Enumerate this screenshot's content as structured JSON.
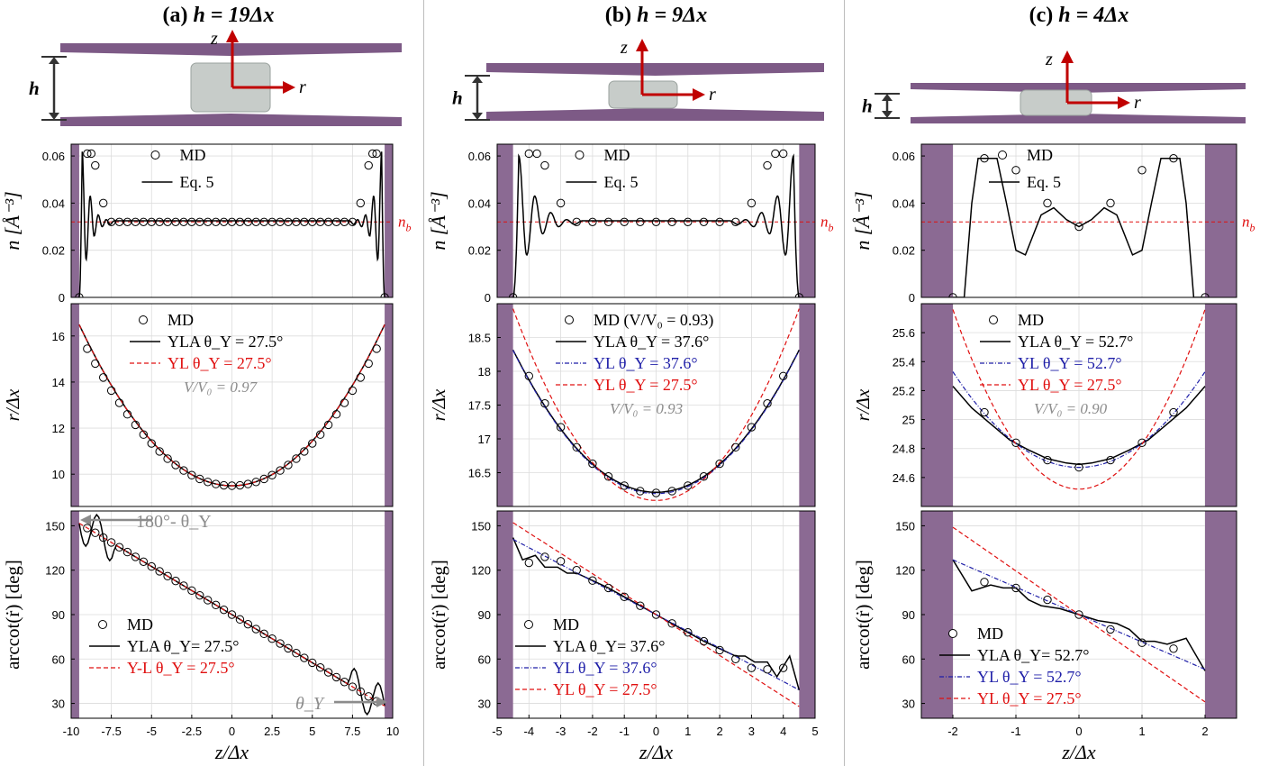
{
  "colors": {
    "wall": "#8b6a93",
    "slab": "#7d5a86",
    "droplet": "#c7ccc9",
    "arrow": "#c00000",
    "md_marker": "#000000",
    "eq_line": "#000000",
    "yla_line": "#000000",
    "yl_fit_line": "#1f1fa8",
    "yl_ref_line": "#e01010",
    "nb_line": "#e01010",
    "annotation_gray": "#8c8c8c"
  },
  "panels": [
    {
      "title_prefix": "(a)",
      "title_eq": "h = 19Δx",
      "schematic": {
        "h_label": "h",
        "z_label": "z",
        "r_label": "r"
      }
    },
    {
      "title_prefix": "(b)",
      "title_eq": "h = 9Δx",
      "schematic": {
        "h_label": "h",
        "z_label": "z",
        "r_label": "r"
      }
    },
    {
      "title_prefix": "(c)",
      "title_eq": "h = 4Δx",
      "schematic": {
        "h_label": "h",
        "z_label": "z",
        "r_label": "r"
      }
    }
  ],
  "chart_data": [
    {
      "id": "a-density",
      "type": "line",
      "ylabel": "n [Å⁻³]",
      "xlim": [
        -10,
        10
      ],
      "ylim": [
        0,
        0.065
      ],
      "yticks": [
        0,
        0.02,
        0.04,
        0.06
      ],
      "ytick_labels": [
        "0",
        "0.02",
        "0.04",
        "0.06"
      ],
      "wall": 9.5,
      "grid": true,
      "legend": "top-center",
      "nb": {
        "value": 0.032,
        "label": "n_b"
      },
      "series": [
        {
          "name": "MD",
          "style": "marker",
          "x": [
            -9.5,
            -9,
            -8.75,
            -8.5,
            -8,
            -7.5,
            -7,
            -6.5,
            -6,
            -5.5,
            -5,
            -4.5,
            -4,
            -3.5,
            -3,
            -2.5,
            -2,
            -1.5,
            -1,
            -0.5,
            0,
            0.5,
            1,
            1.5,
            2,
            2.5,
            3,
            3.5,
            4,
            4.5,
            5,
            5.5,
            6,
            6.5,
            7,
            7.5,
            8,
            8.5,
            8.75,
            9,
            9.5
          ],
          "y": [
            0,
            0.061,
            0.061,
            0.056,
            0.04,
            0.032,
            0.032,
            0.032,
            0.032,
            0.032,
            0.032,
            0.032,
            0.032,
            0.032,
            0.032,
            0.032,
            0.032,
            0.032,
            0.032,
            0.032,
            0.032,
            0.032,
            0.032,
            0.032,
            0.032,
            0.032,
            0.032,
            0.032,
            0.032,
            0.032,
            0.032,
            0.032,
            0.032,
            0.032,
            0.032,
            0.032,
            0.04,
            0.056,
            0.061,
            0.061,
            0
          ]
        },
        {
          "name": "Eq. 5",
          "style": "oscillation",
          "peaks": [
            0.062,
            0.043,
            0.035,
            0.033
          ],
          "troughs": [
            0.016,
            0.026,
            0.03,
            0.031
          ],
          "period": 0.5,
          "decay_to": 0.0325
        }
      ]
    },
    {
      "id": "b-density",
      "type": "line",
      "ylabel": "n [Å⁻³]",
      "xlim": [
        -5,
        5
      ],
      "ylim": [
        0,
        0.065
      ],
      "yticks": [
        0,
        0.02,
        0.04,
        0.06
      ],
      "ytick_labels": [
        "0",
        "0.02",
        "0.04",
        "0.06"
      ],
      "wall": 4.5,
      "grid": true,
      "legend": "top-center",
      "nb": {
        "value": 0.032,
        "label": "n_b"
      },
      "series": [
        {
          "name": "MD",
          "style": "marker",
          "x": [
            -4.5,
            -4,
            -3.75,
            -3.5,
            -3,
            -2.5,
            -2,
            -1.5,
            -1,
            -0.5,
            0,
            0.5,
            1,
            1.5,
            2,
            2.5,
            3,
            3.5,
            3.75,
            4,
            4.5
          ],
          "y": [
            0,
            0.061,
            0.061,
            0.056,
            0.04,
            0.032,
            0.032,
            0.032,
            0.032,
            0.032,
            0.032,
            0.032,
            0.032,
            0.032,
            0.032,
            0.032,
            0.04,
            0.056,
            0.061,
            0.061,
            0
          ]
        },
        {
          "name": "Eq. 5",
          "style": "oscillation",
          "peaks": [
            0.06,
            0.043,
            0.036,
            0.033
          ],
          "troughs": [
            0.018,
            0.027,
            0.03,
            0.031
          ],
          "period": 0.5,
          "decay_to": 0.0325
        }
      ]
    },
    {
      "id": "c-density",
      "type": "line",
      "ylabel": "n [Å⁻³]",
      "xlim": [
        -2.5,
        2.5
      ],
      "ylim": [
        0,
        0.065
      ],
      "yticks": [
        0,
        0.02,
        0.04,
        0.06
      ],
      "ytick_labels": [
        "0",
        "0.02",
        "0.04",
        "0.06"
      ],
      "wall": 2.0,
      "grid": true,
      "legend": "top-center",
      "nb": {
        "value": 0.032,
        "label": "n_b"
      },
      "series": [
        {
          "name": "MD",
          "style": "marker",
          "x": [
            -2,
            -1.5,
            -1,
            -0.5,
            0,
            0.5,
            1,
            1.5,
            2
          ],
          "y": [
            0,
            0.059,
            0.054,
            0.04,
            0.03,
            0.04,
            0.054,
            0.059,
            0
          ]
        },
        {
          "name": "Eq. 5",
          "style": "line",
          "x": [
            -2,
            -1.82,
            -1.7,
            -1.6,
            -1.5,
            -1.3,
            -1.15,
            -1.0,
            -0.85,
            -0.6,
            -0.4,
            -0.2,
            0,
            0.2,
            0.4,
            0.6,
            0.85,
            1.0,
            1.15,
            1.3,
            1.5,
            1.6,
            1.7,
            1.82,
            2
          ],
          "y": [
            0,
            0.0,
            0.04,
            0.059,
            0.059,
            0.059,
            0.04,
            0.02,
            0.018,
            0.035,
            0.038,
            0.033,
            0.03,
            0.033,
            0.038,
            0.035,
            0.018,
            0.02,
            0.04,
            0.059,
            0.059,
            0.059,
            0.04,
            0.0,
            0
          ]
        }
      ]
    },
    {
      "id": "a-profile",
      "type": "line",
      "ylabel": "r/Δx",
      "xlim": [
        -10,
        10
      ],
      "ylim": [
        8.6,
        17.4
      ],
      "yticks": [
        10,
        12,
        14,
        16
      ],
      "ytick_labels": [
        "10",
        "12",
        "14",
        "16"
      ],
      "wall": 9.5,
      "grid": true,
      "legend": "top-left",
      "series": [
        {
          "name": "MD",
          "style": "marker",
          "fn": "para",
          "r0": 9.5,
          "a": 0.0734,
          "x_from": -9,
          "x_to": 9,
          "x_step": 0.5
        },
        {
          "name": "YLA",
          "label": "YLA  θ_Y = 27.5°",
          "style": "solid",
          "fn": "para",
          "r0": 9.5,
          "a": 0.0775
        },
        {
          "name": "YL",
          "label": "YL  θ_Y = 27.5°",
          "style": "red-dash",
          "fn": "para",
          "r0": 9.5,
          "a": 0.0775
        }
      ],
      "note": "V/V₀ = 0.97"
    },
    {
      "id": "b-profile",
      "type": "line",
      "ylabel": "r/Δx",
      "xlim": [
        -5,
        5
      ],
      "ylim": [
        16.0,
        19.0
      ],
      "yticks": [
        16.5,
        17,
        17.5,
        18,
        18.5
      ],
      "ytick_labels": [
        "16.5",
        "17",
        "17.5",
        "18",
        "18.5"
      ],
      "wall": 4.5,
      "grid": true,
      "legend": "top-left",
      "series": [
        {
          "name": "MD",
          "style": "marker",
          "fn": "para",
          "r0": 16.2,
          "a": 0.1081,
          "x_from": -4,
          "x_to": 4,
          "x_step": 0.5
        },
        {
          "name": "YLA",
          "label": "YLA  θ_Y = 37.6°",
          "style": "solid",
          "fn": "para",
          "r0": 16.21,
          "a": 0.104
        },
        {
          "name": "YL",
          "label": "YL  θ_Y = 37.6°",
          "style": "blue-dashdot",
          "fn": "para",
          "r0": 16.19,
          "a": 0.1047
        },
        {
          "name": "YL",
          "label": "YL  θ_Y = 27.5°",
          "style": "red-dash",
          "fn": "para",
          "r0": 16.09,
          "a": 0.14
        }
      ],
      "legend_title": "MD  (V/V₀ = 0.93)",
      "note": "V/V₀ = 0.93"
    },
    {
      "id": "c-profile",
      "type": "line",
      "ylabel": "r/Δx",
      "xlim": [
        -2.5,
        2.5
      ],
      "ylim": [
        24.4,
        25.8
      ],
      "yticks": [
        24.6,
        24.8,
        25,
        25.2,
        25.4,
        25.6
      ],
      "ytick_labels": [
        "24.6",
        "24.8",
        "25",
        "25.2",
        "25.4",
        "25.6"
      ],
      "wall": 2.0,
      "grid": true,
      "legend": "top-left",
      "series": [
        {
          "name": "MD",
          "style": "marker",
          "x": [
            -1.5,
            -1,
            -0.5,
            0,
            0.5,
            1,
            1.5
          ],
          "y": [
            25.05,
            24.84,
            24.72,
            24.67,
            24.72,
            24.84,
            25.05
          ]
        },
        {
          "name": "YLA",
          "label": "YLA  θ_Y = 52.7°",
          "style": "solid",
          "x": [
            -2,
            -1.7,
            -1.4,
            -1.1,
            -0.8,
            -0.5,
            -0.2,
            0,
            0.2,
            0.5,
            0.8,
            1.1,
            1.4,
            1.7,
            2
          ],
          "y": [
            25.23,
            25.08,
            24.97,
            24.86,
            24.79,
            24.73,
            24.7,
            24.69,
            24.7,
            24.73,
            24.79,
            24.86,
            24.97,
            25.08,
            25.23
          ]
        },
        {
          "name": "YL",
          "label": "YL  θ_Y = 52.7°",
          "style": "blue-dashdot",
          "fn": "para",
          "r0": 24.67,
          "a": 0.165
        },
        {
          "name": "YL",
          "label": "YL  θ_Y = 27.5°",
          "style": "red-dash",
          "fn": "para",
          "r0": 24.52,
          "a": 0.31
        }
      ],
      "note": "V/V₀ = 0.90"
    },
    {
      "id": "a-angle",
      "type": "line",
      "ylabel": "arccot(ṙ) [deg]",
      "xlabel": "z/Δx",
      "xlim": [
        -10,
        10
      ],
      "ylim": [
        20,
        160
      ],
      "xticks": [
        -10,
        -7.5,
        -5,
        -2.5,
        0,
        2.5,
        5,
        7.5,
        10
      ],
      "xtick_labels": [
        "-10",
        "-7.5",
        "-5",
        "-2.5",
        "0",
        "2.5",
        "5",
        "7.5",
        "10"
      ],
      "yticks": [
        30,
        60,
        90,
        120,
        150
      ],
      "ytick_labels": [
        "30",
        "60",
        "90",
        "120",
        "150"
      ],
      "wall": 9.5,
      "grid": true,
      "legend": "bottom-left",
      "series": [
        {
          "name": "MD",
          "style": "marker",
          "fn": "lin",
          "c": 90,
          "m": -6.5,
          "x_from": -9,
          "x_to": 9,
          "x_step": 0.5
        },
        {
          "name": "YLA",
          "label": "YLA θ_Y= 27.5°",
          "style": "solid",
          "fn": "lin",
          "c": 90,
          "m": -6.5,
          "wiggle": {
            "from": 7.25,
            "amp": 13
          }
        },
        {
          "name": "Y-L",
          "label": "Y-L  θ_Y = 27.5°",
          "style": "red-dash",
          "fn": "lin",
          "c": 90,
          "m": -6.5
        }
      ],
      "annotations": {
        "top": "180°- θ_Y",
        "bottom": "θ_Y"
      }
    },
    {
      "id": "b-angle",
      "type": "line",
      "ylabel": "arccot(ṙ) [deg]",
      "xlabel": "z/Δx",
      "xlim": [
        -5,
        5
      ],
      "ylim": [
        20,
        160
      ],
      "xticks": [
        -5,
        -4,
        -3,
        -2,
        -1,
        0,
        1,
        2,
        3,
        4,
        5
      ],
      "xtick_labels": [
        "-5",
        "-4",
        "-3",
        "-2",
        "-1",
        "0",
        "1",
        "2",
        "3",
        "4",
        "5"
      ],
      "yticks": [
        30,
        60,
        90,
        120,
        150
      ],
      "ytick_labels": [
        "30",
        "60",
        "90",
        "120",
        "150"
      ],
      "wall": 4.5,
      "grid": true,
      "legend": "bottom-left",
      "series": [
        {
          "name": "MD",
          "style": "marker",
          "x": [
            -4,
            -3.5,
            -3,
            -2.5,
            -2,
            -1.5,
            -1,
            -0.5,
            0,
            0.5,
            1,
            1.5,
            2,
            2.5,
            3,
            3.5,
            4
          ],
          "y": [
            125,
            129,
            126,
            120,
            113,
            108,
            102,
            96,
            90,
            84,
            78,
            72,
            66,
            60,
            54,
            53,
            54
          ]
        },
        {
          "name": "YLA",
          "label": "YLA θ_Y= 37.6°",
          "style": "solid",
          "x": [
            -4.5,
            -4.2,
            -3.8,
            -3.5,
            -3.1,
            -2.8,
            -2.5,
            -2,
            -1.5,
            -1,
            -0.5,
            0,
            0.5,
            1,
            1.5,
            2,
            2.5,
            2.8,
            3.1,
            3.5,
            3.8,
            4.2,
            4.5
          ],
          "y": [
            142,
            127,
            130,
            122,
            122,
            118,
            118,
            113,
            108,
            102,
            96,
            90,
            84,
            78,
            72,
            67,
            62,
            62,
            58,
            58,
            48,
            62,
            39
          ]
        },
        {
          "name": "YL",
          "label": "YL  θ_Y = 37.6°",
          "style": "blue-dashdot",
          "fn": "lin",
          "c": 90,
          "m": -11.3
        },
        {
          "name": "YL",
          "label": "YL  θ_Y = 27.5°",
          "style": "red-dash",
          "fn": "lin",
          "c": 90,
          "m": -13.8
        }
      ]
    },
    {
      "id": "c-angle",
      "type": "line",
      "ylabel": "arccot(ṙ) [deg]",
      "xlabel": "z/Δx",
      "xlim": [
        -2.5,
        2.5
      ],
      "ylim": [
        20,
        160
      ],
      "xticks": [
        -2,
        -1,
        0,
        1,
        2
      ],
      "xtick_labels": [
        "-2",
        "-1",
        "0",
        "1",
        "2"
      ],
      "yticks": [
        30,
        60,
        90,
        120,
        150
      ],
      "ytick_labels": [
        "30",
        "60",
        "90",
        "120",
        "150"
      ],
      "wall": 2.0,
      "grid": true,
      "legend": "bottom-left",
      "series": [
        {
          "name": "MD",
          "style": "marker",
          "x": [
            -1.5,
            -1,
            -0.5,
            0,
            0.5,
            1,
            1.5
          ],
          "y": [
            112,
            108,
            100,
            90,
            80,
            71,
            67
          ]
        },
        {
          "name": "YLA",
          "label": "YLA θ_Y= 52.7°",
          "style": "solid",
          "x": [
            -2,
            -1.7,
            -1.4,
            -1.2,
            -1.0,
            -0.8,
            -0.6,
            -0.3,
            0,
            0.3,
            0.6,
            0.8,
            1.0,
            1.2,
            1.4,
            1.7,
            2
          ],
          "y": [
            127,
            106,
            110,
            108,
            108,
            100,
            96,
            94,
            90,
            86,
            84,
            80,
            72,
            72,
            70,
            74,
            52
          ]
        },
        {
          "name": "YL",
          "label": "YL  θ_Y = 52.7°",
          "style": "blue-dashdot",
          "fn": "lin",
          "c": 90,
          "m": -18.5
        },
        {
          "name": "YL",
          "label": "YL  θ_Y = 27.5°",
          "style": "red-dash",
          "fn": "lin",
          "c": 90,
          "m": -29.5
        }
      ]
    }
  ]
}
